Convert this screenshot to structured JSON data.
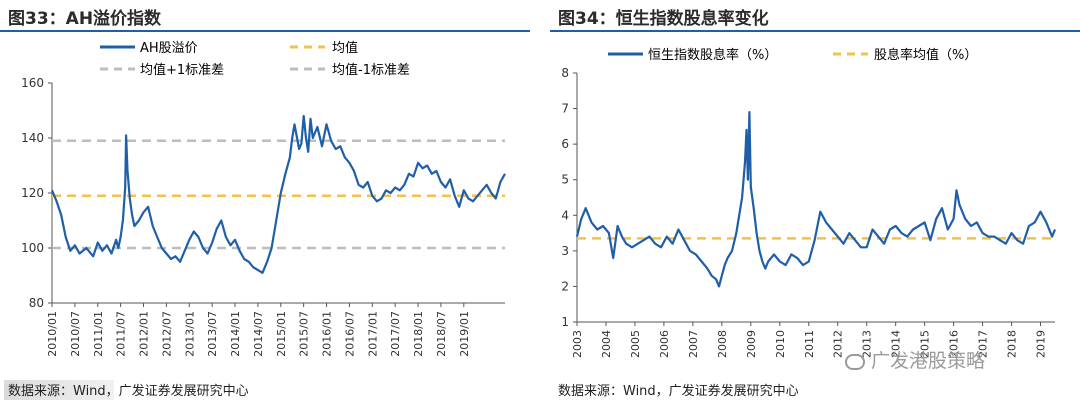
{
  "left": {
    "title": "图33：AH溢价指数",
    "source": "数据来源：Wind，广发证券发展研究中心",
    "legend": {
      "series": "AH股溢价",
      "mean": "均值",
      "upper": "均值+1标准差",
      "lower": "均值-1标准差"
    }
  },
  "right": {
    "title": "图34：恒生指数股息率变化",
    "source": "数据来源：Wind，广发证券发展研究中心",
    "legend": {
      "series": "恒生指数股息率（%）",
      "mean": "股息率均值（%）"
    }
  },
  "watermark": "广发港股策略",
  "colors": {
    "series": "#1f5fa8",
    "mean": "#f2c14e",
    "band": "#bdbdbd",
    "axis": "#555555"
  },
  "chart_data": [
    {
      "type": "line",
      "title": "AH溢价指数",
      "ylim": [
        80,
        160
      ],
      "yticks": [
        80,
        100,
        120,
        140,
        160
      ],
      "x_range": [
        2010.0,
        2019.9
      ],
      "xticks": [
        "2010/01",
        "2010/07",
        "2011/01",
        "2011/07",
        "2012/01",
        "2012/07",
        "2013/01",
        "2013/07",
        "2014/01",
        "2014/07",
        "2015/01",
        "2015/07",
        "2016/01",
        "2016/07",
        "2017/01",
        "2017/07",
        "2018/01",
        "2018/07",
        "2019/01"
      ],
      "reference_lines": [
        {
          "name": "均值",
          "value": 119
        },
        {
          "name": "均值+1标准差",
          "value": 139
        },
        {
          "name": "均值-1标准差",
          "value": 100
        }
      ],
      "series": [
        {
          "name": "AH股溢价",
          "x": [
            2010.0,
            2010.1,
            2010.2,
            2010.3,
            2010.4,
            2010.5,
            2010.6,
            2010.75,
            2010.9,
            2011.0,
            2011.1,
            2011.2,
            2011.3,
            2011.4,
            2011.45,
            2011.5,
            2011.55,
            2011.6,
            2011.62,
            2011.65,
            2011.7,
            2011.75,
            2011.8,
            2011.9,
            2012.0,
            2012.1,
            2012.2,
            2012.3,
            2012.4,
            2012.5,
            2012.6,
            2012.7,
            2012.8,
            2012.9,
            2013.0,
            2013.1,
            2013.2,
            2013.3,
            2013.4,
            2013.5,
            2013.6,
            2013.7,
            2013.8,
            2013.9,
            2014.0,
            2014.1,
            2014.2,
            2014.3,
            2014.4,
            2014.5,
            2014.6,
            2014.7,
            2014.8,
            2014.9,
            2015.0,
            2015.1,
            2015.2,
            2015.25,
            2015.3,
            2015.4,
            2015.45,
            2015.5,
            2015.55,
            2015.6,
            2015.65,
            2015.7,
            2015.8,
            2015.9,
            2016.0,
            2016.05,
            2016.1,
            2016.2,
            2016.3,
            2016.4,
            2016.5,
            2016.6,
            2016.7,
            2016.8,
            2016.9,
            2017.0,
            2017.1,
            2017.2,
            2017.3,
            2017.4,
            2017.5,
            2017.6,
            2017.7,
            2017.8,
            2017.9,
            2018.0,
            2018.1,
            2018.2,
            2018.3,
            2018.4,
            2018.5,
            2018.6,
            2018.7,
            2018.8,
            2018.9,
            2019.0,
            2019.1,
            2019.2,
            2019.3,
            2019.4,
            2019.5,
            2019.6,
            2019.7,
            2019.8,
            2019.9
          ],
          "values": [
            121,
            117,
            112,
            104,
            99,
            101,
            98,
            100,
            97,
            102,
            99,
            101,
            98,
            103,
            100,
            104,
            110,
            122,
            141,
            128,
            118,
            112,
            108,
            110,
            113,
            115,
            108,
            104,
            100,
            98,
            96,
            97,
            95,
            99,
            103,
            106,
            104,
            100,
            98,
            102,
            107,
            110,
            104,
            101,
            103,
            99,
            96,
            95,
            93,
            92,
            91,
            95,
            100,
            110,
            120,
            127,
            133,
            140,
            145,
            136,
            138,
            148,
            140,
            135,
            147,
            140,
            144,
            137,
            145,
            142,
            139,
            136,
            137,
            133,
            131,
            128,
            123,
            122,
            124,
            119,
            117,
            118,
            121,
            120,
            122,
            121,
            123,
            127,
            126,
            131,
            129,
            130,
            127,
            128,
            124,
            122,
            125,
            119,
            115,
            121,
            118,
            117,
            119,
            121,
            123,
            120,
            118,
            124,
            127
          ]
        }
      ]
    },
    {
      "type": "line",
      "title": "恒生指数股息率变化",
      "ylim": [
        1,
        8
      ],
      "yticks": [
        1,
        2,
        3,
        4,
        5,
        6,
        7,
        8
      ],
      "x_range": [
        2003.0,
        2019.5
      ],
      "xticks": [
        "2003",
        "2004",
        "2005",
        "2006",
        "2007",
        "2008",
        "2009",
        "2010",
        "2011",
        "2012",
        "2013",
        "2014",
        "2015",
        "2016",
        "2017",
        "2018",
        "2019"
      ],
      "reference_lines": [
        {
          "name": "股息率均值（%）",
          "value": 3.35
        }
      ],
      "series": [
        {
          "name": "恒生指数股息率（%）",
          "x": [
            2003.0,
            2003.15,
            2003.3,
            2003.5,
            2003.7,
            2003.9,
            2004.1,
            2004.25,
            2004.4,
            2004.55,
            2004.7,
            2004.9,
            2005.1,
            2005.3,
            2005.5,
            2005.7,
            2005.9,
            2006.1,
            2006.3,
            2006.5,
            2006.7,
            2006.9,
            2007.1,
            2007.3,
            2007.5,
            2007.65,
            2007.8,
            2007.9,
            2008.0,
            2008.1,
            2008.2,
            2008.35,
            2008.5,
            2008.6,
            2008.7,
            2008.8,
            2008.85,
            2008.9,
            2008.95,
            2009.0,
            2009.1,
            2009.2,
            2009.3,
            2009.4,
            2009.5,
            2009.6,
            2009.8,
            2010.0,
            2010.2,
            2010.4,
            2010.6,
            2010.8,
            2011.0,
            2011.2,
            2011.4,
            2011.6,
            2011.8,
            2012.0,
            2012.2,
            2012.4,
            2012.6,
            2012.8,
            2013.0,
            2013.2,
            2013.4,
            2013.6,
            2013.8,
            2014.0,
            2014.2,
            2014.4,
            2014.6,
            2014.8,
            2015.0,
            2015.2,
            2015.4,
            2015.6,
            2015.8,
            2016.0,
            2016.1,
            2016.2,
            2016.4,
            2016.6,
            2016.8,
            2017.0,
            2017.2,
            2017.4,
            2017.6,
            2017.8,
            2018.0,
            2018.2,
            2018.4,
            2018.6,
            2018.8,
            2019.0,
            2019.2,
            2019.4,
            2019.5
          ],
          "values": [
            3.4,
            3.9,
            4.2,
            3.8,
            3.6,
            3.7,
            3.5,
            2.8,
            3.7,
            3.4,
            3.2,
            3.1,
            3.2,
            3.3,
            3.4,
            3.2,
            3.1,
            3.4,
            3.2,
            3.6,
            3.3,
            3.0,
            2.9,
            2.7,
            2.5,
            2.3,
            2.2,
            2.0,
            2.3,
            2.6,
            2.8,
            3.0,
            3.5,
            4.0,
            4.5,
            5.5,
            6.4,
            5.0,
            6.9,
            4.8,
            4.2,
            3.5,
            3.0,
            2.7,
            2.5,
            2.7,
            2.9,
            2.7,
            2.6,
            2.9,
            2.8,
            2.6,
            2.7,
            3.3,
            4.1,
            3.8,
            3.6,
            3.4,
            3.2,
            3.5,
            3.3,
            3.1,
            3.1,
            3.6,
            3.4,
            3.2,
            3.6,
            3.7,
            3.5,
            3.4,
            3.6,
            3.7,
            3.8,
            3.3,
            3.9,
            4.2,
            3.6,
            3.9,
            4.7,
            4.3,
            3.9,
            3.7,
            3.8,
            3.5,
            3.4,
            3.4,
            3.3,
            3.2,
            3.5,
            3.3,
            3.2,
            3.7,
            3.8,
            4.1,
            3.8,
            3.4,
            3.6
          ]
        }
      ]
    }
  ]
}
